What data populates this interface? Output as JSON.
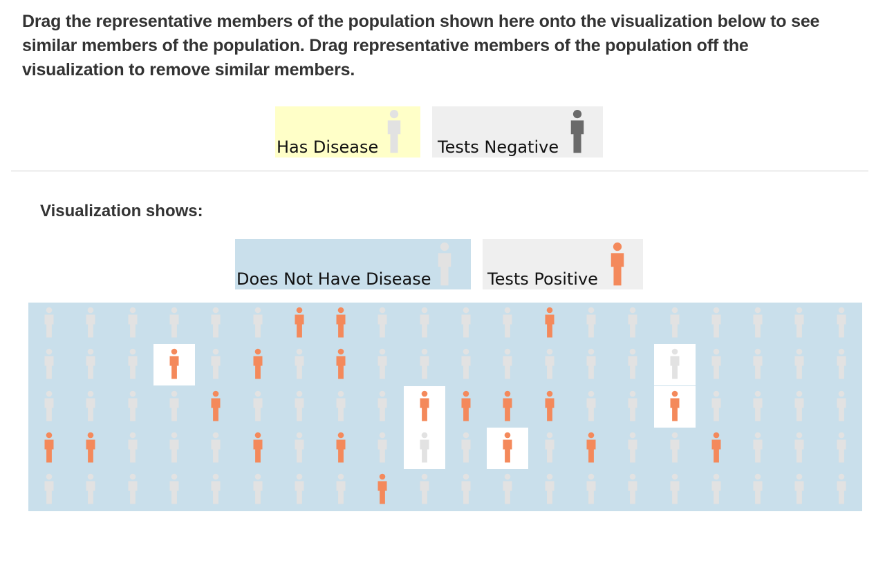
{
  "instructions": "Drag the representative members of the population shown here onto the visualization below to see similar members of the population. Drag representative members of the population off the visualization to remove similar members.",
  "colors": {
    "has_disease_bg": "#ffffc8",
    "no_disease_bg": "#c9dfeb",
    "card_gray_bg": "#efefef",
    "figure_light": "#e2e2e2",
    "figure_dark": "#6a6a6a",
    "figure_orange": "#f4895b",
    "viz_bg": "#c9dfeb",
    "highlight_bg": "#ffffff"
  },
  "palette": {
    "filter": {
      "has_disease": {
        "label": "Has Disease",
        "icon": "person-icon",
        "icon_color": "light-gray"
      },
      "tests_negative": {
        "label": "Tests Negative",
        "icon": "person-icon",
        "icon_color": "dark-gray"
      }
    },
    "visualization_shows_heading": "Visualization shows:",
    "shown": {
      "no_disease": {
        "label": "Does Not Have Disease",
        "icon": "person-icon",
        "icon_color": "light-gray"
      },
      "tests_positive": {
        "label": "Tests Positive",
        "icon": "person-icon",
        "icon_color": "orange"
      }
    }
  },
  "population_grid": {
    "columns": 20,
    "rows": 5,
    "legend": {
      "L": "does not have disease, tests negative",
      "O": "tests positive",
      "WL": "highlighted, tests negative",
      "WO": "highlighted, tests positive"
    },
    "cells": [
      [
        "L",
        "L",
        "L",
        "L",
        "L",
        "L",
        "O",
        "O",
        "L",
        "L",
        "L",
        "L",
        "O",
        "L",
        "L",
        "L",
        "L",
        "L",
        "L",
        "L"
      ],
      [
        "L",
        "L",
        "L",
        "WO",
        "L",
        "O",
        "L",
        "O",
        "L",
        "L",
        "L",
        "L",
        "L",
        "L",
        "L",
        "WL",
        "L",
        "L",
        "L",
        "L"
      ],
      [
        "L",
        "L",
        "L",
        "L",
        "O",
        "L",
        "L",
        "L",
        "L",
        "WO",
        "O",
        "O",
        "O",
        "L",
        "L",
        "WO",
        "L",
        "L",
        "L",
        "L"
      ],
      [
        "O",
        "O",
        "L",
        "L",
        "L",
        "O",
        "L",
        "O",
        "L",
        "WL",
        "L",
        "WO",
        "L",
        "O",
        "L",
        "L",
        "O",
        "L",
        "L",
        "L"
      ],
      [
        "L",
        "L",
        "L",
        "L",
        "L",
        "L",
        "L",
        "L",
        "O",
        "L",
        "L",
        "L",
        "L",
        "L",
        "L",
        "L",
        "L",
        "L",
        "L",
        "L"
      ]
    ]
  }
}
